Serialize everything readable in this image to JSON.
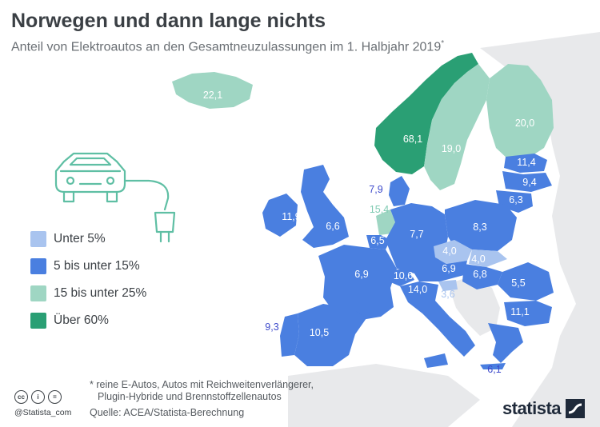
{
  "header": {
    "title": "Norwegen und dann lange nichts",
    "subtitle": "Anteil von Elektroautos an den Gesamtneuzulassungen im 1. Halbjahr 2019",
    "subtitle_mark": "*"
  },
  "legend": [
    {
      "label": "Unter 5%",
      "color": "#a9c4ef"
    },
    {
      "label": "5 bis unter 15%",
      "color": "#4a7fe0"
    },
    {
      "label": "15 bis unter 25%",
      "color": "#9fd6c3"
    },
    {
      "label": "Über 60%",
      "color": "#2a9f74"
    }
  ],
  "colors": {
    "background_land": "#e8e9eb",
    "sea": "#ffffff",
    "under5": "#a9c4ef",
    "band5_15": "#4a7fe0",
    "band15_25": "#9fd6c3",
    "over60": "#2a9f74"
  },
  "map_values": {
    "island": "22,1",
    "norwegen": "68,1",
    "schweden": "19,0",
    "finnland": "20,0",
    "estland": "11,4",
    "lettland": "9,4",
    "litauen": "6,3",
    "daenemark": "7,9",
    "irland": "11,9",
    "vk": "6,6",
    "niederlande": "15,4",
    "belgien": "6,5",
    "deutschland": "7,7",
    "polen": "8,3",
    "tschechien": "4,0",
    "slowakei": "4,0",
    "frankreich": "6,9",
    "schweiz": "10,6",
    "oesterreich": "6,9",
    "ungarn": "6,8",
    "rumaenien": "5,5",
    "slowenien": "3,6",
    "italien": "14,0",
    "bulgarien": "11,1",
    "portugal": "9,3",
    "spanien": "10,5",
    "griechenland": "6,1"
  },
  "footnote": {
    "line1": "* reine E-Autos, Autos mit Reichweitenverlängerer,",
    "line2": "Plugin-Hybride und Brennstoffzellenautos"
  },
  "source": "Quelle: ACEA/Statista-Berechnung",
  "credit": "@Statista_com",
  "cc_icons": [
    "cc-icon",
    "by-icon",
    "nd-icon"
  ],
  "cc_glyphs": [
    "cc",
    "i",
    "="
  ],
  "brand": "statista",
  "icon": "electric-car-plug-icon"
}
